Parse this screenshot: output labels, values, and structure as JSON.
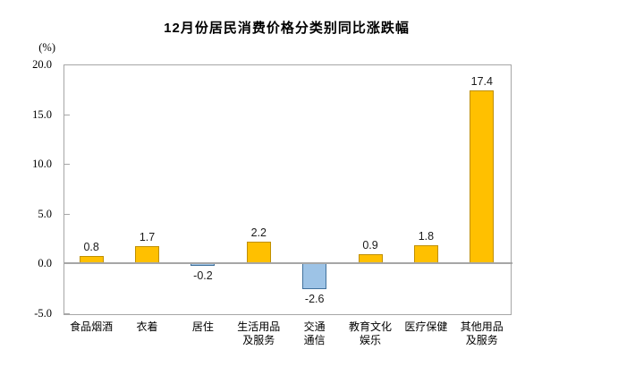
{
  "title": "12月份居民消费价格分类别同比涨跌幅",
  "axis_unit_label": "(%)",
  "chart_data": {
    "type": "bar",
    "title": "12月份居民消费价格分类别同比涨跌幅",
    "categories": [
      "食品烟酒",
      "衣着",
      "居住",
      "生活用品\n及服务",
      "交通\n通信",
      "教育文化\n娱乐",
      "医疗保健",
      "其他用品\n及服务"
    ],
    "values": [
      0.8,
      1.7,
      -0.2,
      2.2,
      -2.6,
      0.9,
      1.8,
      17.4
    ],
    "data_labels": [
      "0.8",
      "1.7",
      "-0.2",
      "2.2",
      "-2.6",
      "0.9",
      "1.8",
      "17.4"
    ],
    "xlabel": "",
    "ylabel": "(%)",
    "ylim": [
      -5.0,
      20.0
    ],
    "y_ticks": [
      20.0,
      15.0,
      10.0,
      5.0,
      0.0,
      -5.0
    ],
    "y_tick_labels": [
      "20.0",
      "15.0",
      "10.0",
      "5.0",
      "0.0",
      "-5.0"
    ],
    "grid": false,
    "legend_position": "none",
    "colors": {
      "positive_fill": "#FFC000",
      "positive_border": "#BF8F00",
      "negative_fill": "#9DC3E6",
      "negative_border": "#41719C",
      "axis": "#A6A6A6",
      "text": "#1A1A1A"
    }
  }
}
